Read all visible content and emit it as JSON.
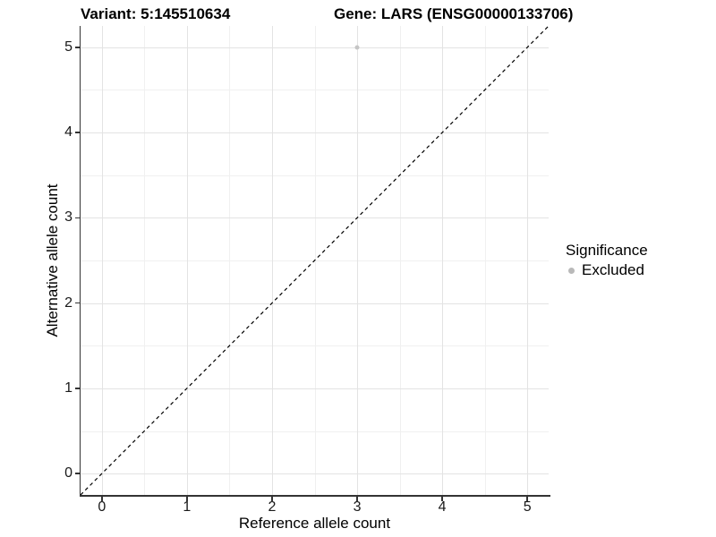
{
  "chart_data": {
    "type": "scatter",
    "titles": {
      "variant": "Variant: 5:145510634",
      "gene": "Gene: LARS (ENSG00000133706)"
    },
    "xlabel": "Reference allele count",
    "ylabel": "Alternative allele count",
    "xlim": [
      -0.25,
      5.25
    ],
    "ylim": [
      -0.25,
      5.25
    ],
    "x_ticks": [
      0,
      1,
      2,
      3,
      4,
      5
    ],
    "y_ticks": [
      0,
      1,
      2,
      3,
      4,
      5
    ],
    "grid": {
      "major": true,
      "minor": true
    },
    "points": [
      {
        "x": 3,
        "y": 5,
        "significance": "Excluded",
        "color": "#c5c5c5"
      }
    ],
    "reference_line": {
      "slope": 1,
      "intercept": 0,
      "linetype": "dashed",
      "color": "#000000"
    },
    "legend": {
      "title": "Significance",
      "position": "right",
      "entries": [
        {
          "label": "Excluded",
          "color": "#b9b9b9",
          "shape": "circle"
        }
      ]
    },
    "colors": {
      "grid_major": "#e3e3e3",
      "grid_minor": "#f0f0f0",
      "axis_line": "#333333",
      "background": "#ffffff"
    }
  }
}
